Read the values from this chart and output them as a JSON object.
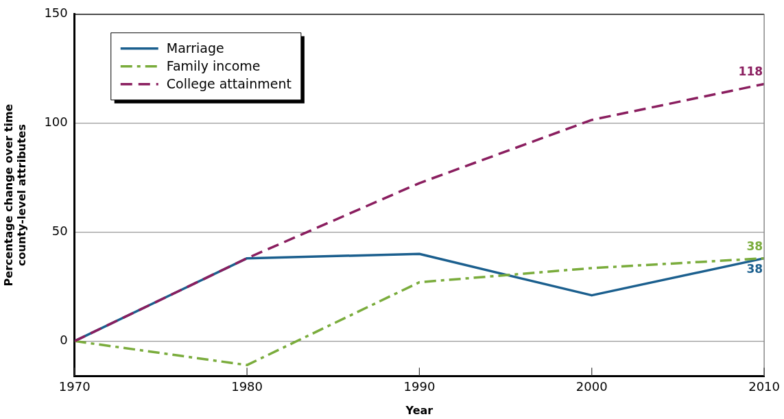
{
  "chart_data": {
    "type": "line",
    "xlabel": "Year",
    "ylabel": "Percentage change over time county-level attributes",
    "x": [
      1970,
      1980,
      1990,
      2000,
      2010
    ],
    "xlim": [
      1970,
      2010
    ],
    "xticks": [
      1970,
      1980,
      1990,
      2000,
      2010
    ],
    "ylim": [
      -16,
      150
    ],
    "yticks": [
      0,
      50,
      100,
      150
    ],
    "grid": "y",
    "legend": "top left",
    "marker": "none",
    "series": [
      {
        "name": "Marriage",
        "color": "#1b5f8e",
        "line_style": "solid",
        "values": [
          0,
          38,
          40,
          21,
          38
        ],
        "value_labels": [
          null,
          null,
          null,
          null,
          "38"
        ]
      },
      {
        "name": "Family income",
        "color": "#7aac3c",
        "line_style": "dashdot",
        "values": [
          0,
          -11,
          27,
          33.5,
          38
        ],
        "value_labels": [
          null,
          null,
          null,
          null,
          "38"
        ]
      },
      {
        "name": "College attainment",
        "color": "#8a1e5f",
        "line_style": "dashed",
        "values": [
          0,
          38,
          72.5,
          101.5,
          118
        ],
        "value_labels": [
          null,
          null,
          null,
          null,
          "118"
        ]
      }
    ]
  }
}
